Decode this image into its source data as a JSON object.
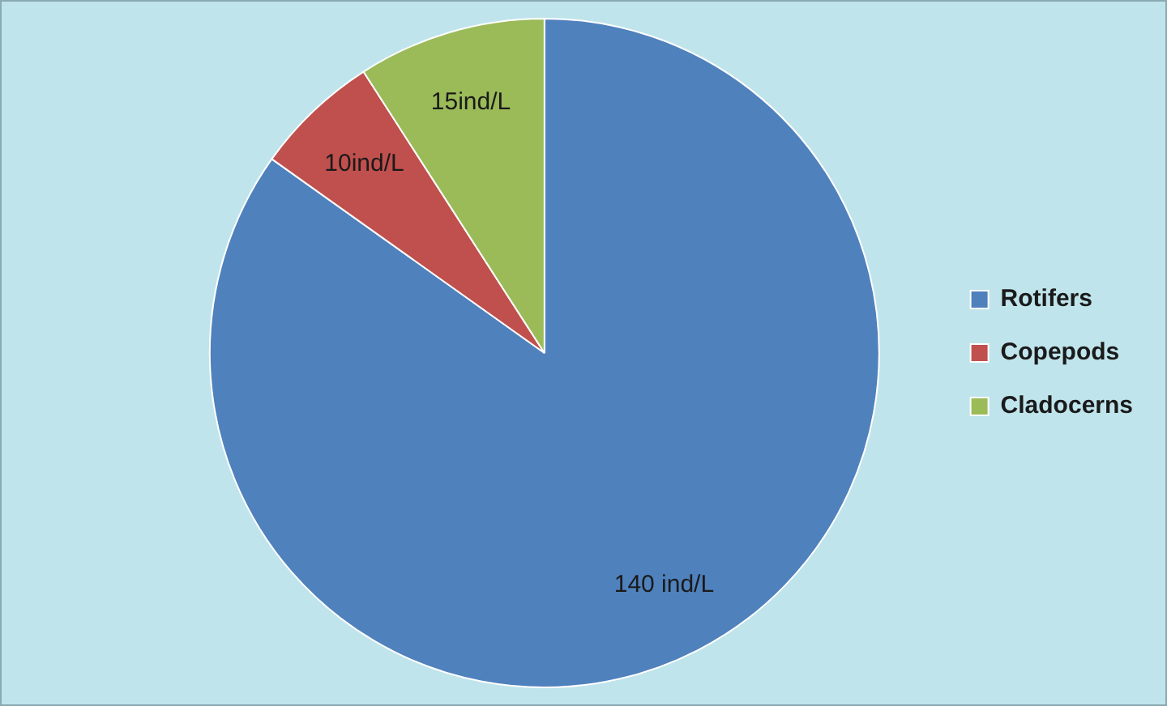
{
  "chart_data": {
    "type": "pie",
    "categories": [
      "Rotifers",
      "Copepods",
      "Cladocerns"
    ],
    "values": [
      140,
      10,
      15
    ],
    "colors": [
      "#4f81bd",
      "#c0504d",
      "#9bbb59"
    ],
    "value_labels": [
      "140 ind/L",
      "10ind/L",
      "15ind/L"
    ],
    "legend": "right"
  }
}
